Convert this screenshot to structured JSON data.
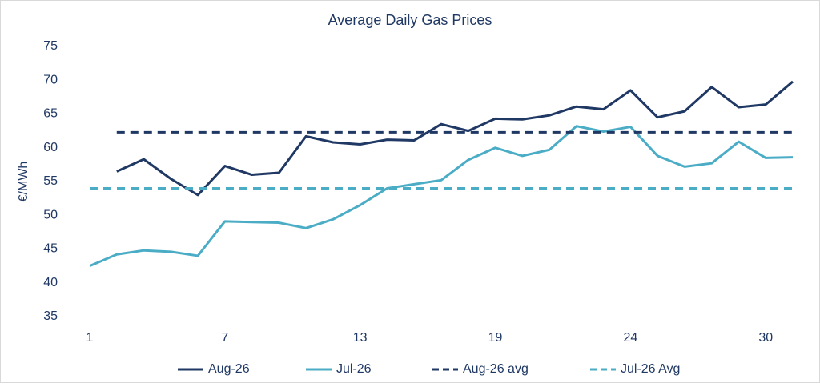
{
  "chart_data": {
    "type": "line",
    "title": "Average Daily Gas Prices",
    "y_label": "€/MWh",
    "categories": [
      "1",
      null,
      null,
      null,
      null,
      "7",
      null,
      null,
      null,
      null,
      "13",
      null,
      null,
      null,
      null,
      "19",
      null,
      null,
      null,
      null,
      "24",
      null,
      null,
      null,
      null,
      "30",
      null
    ],
    "series": [
      {
        "name": "Aug-26",
        "color": "#1f3864",
        "dashed": false,
        "values": [
          null,
          56.5,
          58.3,
          55.4,
          53.0,
          57.3,
          56.0,
          56.3,
          61.7,
          60.8,
          60.5,
          61.2,
          61.1,
          63.5,
          62.5,
          64.3,
          64.2,
          64.8,
          66.1,
          65.7,
          68.5,
          64.5,
          65.4,
          69.0,
          66.0,
          66.4,
          69.8
        ]
      },
      {
        "name": "Jul-26",
        "color": "#4bacc6",
        "dashed": false,
        "values": [
          42.5,
          44.2,
          44.8,
          44.6,
          44.0,
          49.1,
          49.0,
          48.9,
          48.1,
          49.4,
          51.5,
          54.0,
          54.6,
          55.2,
          58.2,
          60.0,
          58.8,
          59.7,
          63.2,
          62.4,
          63.1,
          58.8,
          57.2,
          57.7,
          60.9,
          58.5,
          58.6
        ]
      },
      {
        "name": "Aug-26 avg",
        "color": "#1f3864",
        "dashed": true,
        "values": [
          null,
          62.3,
          62.3,
          62.3,
          62.3,
          62.3,
          62.3,
          62.3,
          62.3,
          62.3,
          62.3,
          62.3,
          62.3,
          62.3,
          62.3,
          62.3,
          62.3,
          62.3,
          62.3,
          62.3,
          62.3,
          62.3,
          62.3,
          62.3,
          62.3,
          62.3,
          62.3
        ]
      },
      {
        "name": "Jul-26 Avg",
        "color": "#4bacc6",
        "dashed": true,
        "values": [
          54.0,
          54.0,
          54.0,
          54.0,
          54.0,
          54.0,
          54.0,
          54.0,
          54.0,
          54.0,
          54.0,
          54.0,
          54.0,
          54.0,
          54.0,
          54.0,
          54.0,
          54.0,
          54.0,
          54.0,
          54.0,
          54.0,
          54.0,
          54.0,
          54.0,
          54.0,
          54.0
        ]
      }
    ],
    "ylim": [
      35,
      75
    ],
    "yticks": [
      35,
      40,
      45,
      50,
      55,
      60,
      65,
      70,
      75
    ],
    "grid": false,
    "legend": "bottom"
  }
}
